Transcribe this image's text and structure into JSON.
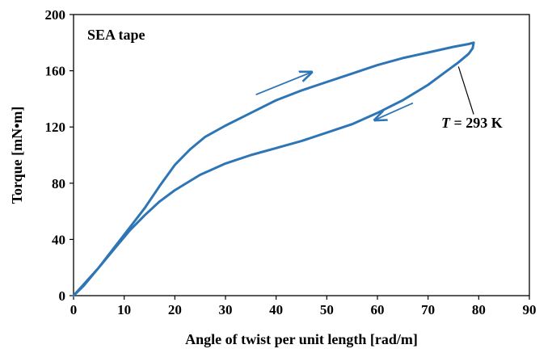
{
  "chart_data": {
    "type": "line",
    "xlabel": "Angle of twist per unit length [rad/m]",
    "ylabel": "Torque [mN•m]",
    "xlim": [
      0,
      90
    ],
    "ylim": [
      0,
      200
    ],
    "xticks": [
      "0",
      "10",
      "20",
      "30",
      "40",
      "50",
      "60",
      "70",
      "80",
      "90"
    ],
    "yticks": [
      "0",
      "40",
      "80",
      "120",
      "160",
      "200"
    ],
    "grid": false,
    "legend": "none",
    "colors": {
      "series": "#2E75B6",
      "axes": "#000000"
    },
    "annotations": {
      "panel": "SEA tape",
      "temperature_symbol": "T",
      "temperature_value": " = 293 K"
    },
    "series": [
      {
        "loop": [
          [
            0,
            0
          ],
          [
            2,
            8
          ],
          [
            5,
            20
          ],
          [
            8,
            34
          ],
          [
            11,
            48
          ],
          [
            14,
            62
          ],
          [
            17,
            78
          ],
          [
            20,
            93
          ],
          [
            23,
            104
          ],
          [
            26,
            113
          ],
          [
            30,
            121
          ],
          [
            35,
            130
          ],
          [
            40,
            139
          ],
          [
            45,
            146
          ],
          [
            50,
            152
          ],
          [
            55,
            158
          ],
          [
            60,
            164
          ],
          [
            65,
            169
          ],
          [
            70,
            173
          ],
          [
            75,
            177
          ],
          [
            78,
            179
          ],
          [
            79,
            180
          ],
          [
            78.8,
            176
          ],
          [
            78,
            172
          ],
          [
            76,
            166
          ],
          [
            73,
            158
          ],
          [
            70,
            150
          ],
          [
            65,
            139
          ],
          [
            60,
            130
          ],
          [
            55,
            122
          ],
          [
            50,
            116
          ],
          [
            45,
            110
          ],
          [
            40,
            105
          ],
          [
            35,
            100
          ],
          [
            30,
            94
          ],
          [
            25,
            86
          ],
          [
            20,
            75
          ],
          [
            17,
            67
          ],
          [
            14,
            57
          ],
          [
            11,
            46
          ],
          [
            8,
            33
          ],
          [
            5,
            20
          ],
          [
            2,
            7
          ],
          [
            0,
            0
          ]
        ]
      }
    ],
    "direction_arrows": [
      {
        "from": [
          36,
          143
        ],
        "to": [
          47,
          159
        ]
      },
      {
        "from": [
          67,
          137
        ],
        "to": [
          59.5,
          125
        ]
      }
    ],
    "callout": {
      "from": [
        76,
        163
      ],
      "to": [
        79,
        129
      ]
    }
  }
}
